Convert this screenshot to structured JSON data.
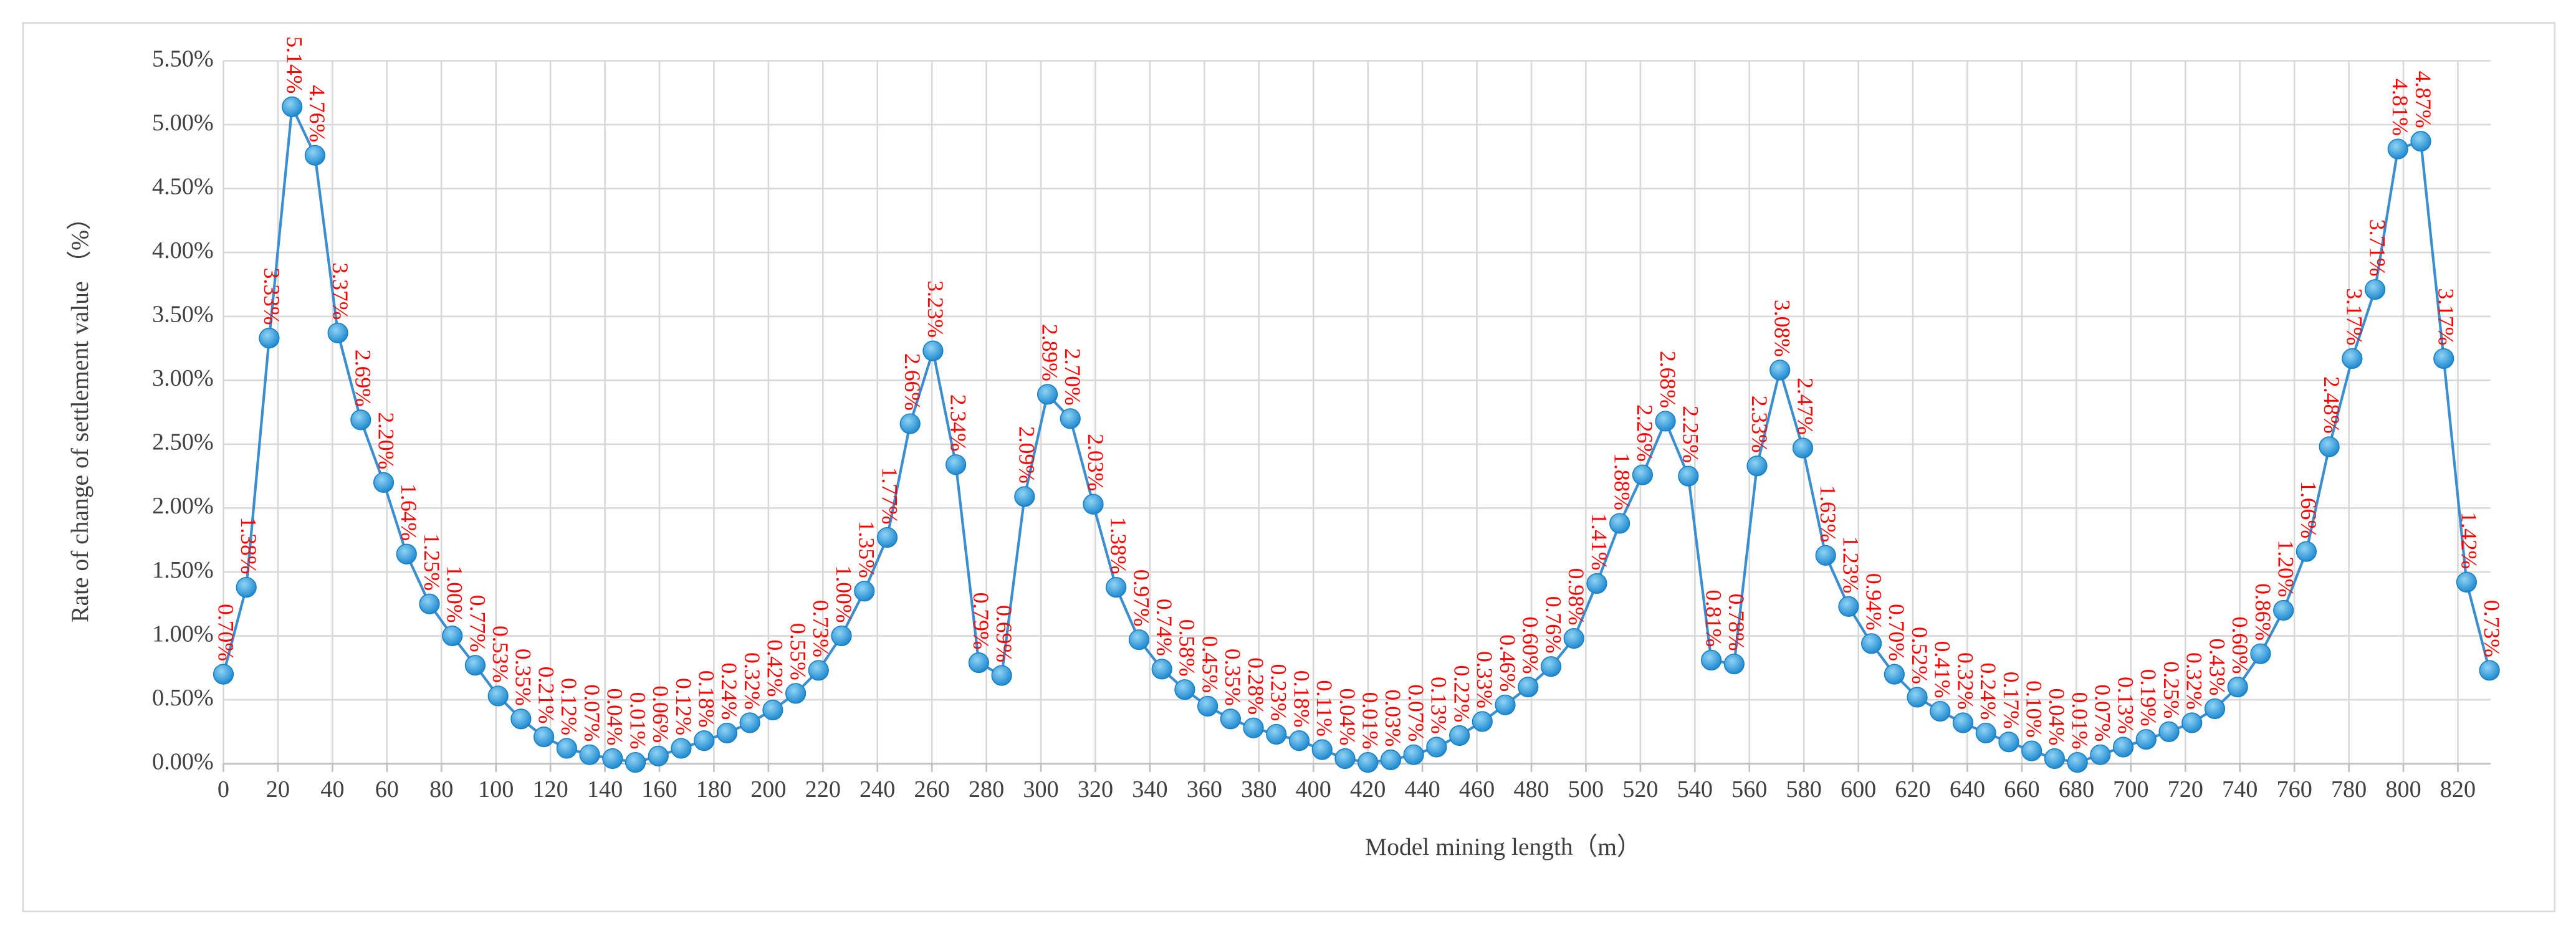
{
  "chart_data": {
    "type": "line",
    "xlabel": "Model mining length（m）",
    "ylabel": "Rate of change of settlement value （%）",
    "x": [
      0,
      8.4,
      16.8,
      25.2,
      33.6,
      42,
      50.4,
      58.8,
      67.2,
      75.6,
      84,
      92.4,
      100.8,
      109.2,
      117.6,
      126,
      134.4,
      142.8,
      151.2,
      159.6,
      168,
      176.4,
      184.8,
      193.2,
      201.6,
      210,
      218.4,
      226.8,
      235.2,
      243.6,
      252,
      260.4,
      268.8,
      277.2,
      285.6,
      294,
      302.4,
      310.8,
      319.2,
      327.6,
      336,
      344.4,
      352.8,
      361.2,
      369.6,
      378,
      386.4,
      394.8,
      403.2,
      411.6,
      420,
      428.4,
      436.8,
      445.2,
      453.6,
      462,
      470.4,
      478.8,
      487.2,
      495.6,
      504,
      512.4,
      520.8,
      529.2,
      537.6,
      546,
      554.4,
      562.8,
      571.2,
      579.6,
      588,
      596.4,
      604.8,
      613.2,
      621.6,
      630,
      638.4,
      646.8,
      655.2,
      663.6,
      672,
      680.4,
      688.8,
      697.2,
      705.6,
      714,
      722.4,
      730.8,
      739.2,
      747.6,
      756,
      764.4,
      772.8,
      781.2,
      789.6,
      798,
      806.4,
      814.8,
      823.2,
      831.6
    ],
    "series": [
      {
        "color": "#3b8fd0",
        "values": [
          0.7,
          1.38,
          3.33,
          5.14,
          4.76,
          3.37,
          2.69,
          2.2,
          1.64,
          1.25,
          1.0,
          0.77,
          0.53,
          0.35,
          0.21,
          0.12,
          0.07,
          0.04,
          0.01,
          0.06,
          0.12,
          0.18,
          0.24,
          0.32,
          0.42,
          0.55,
          0.73,
          1.0,
          1.35,
          1.77,
          2.66,
          3.23,
          2.34,
          0.79,
          0.69,
          2.09,
          2.89,
          2.7,
          2.03,
          1.38,
          0.97,
          0.74,
          0.58,
          0.45,
          0.35,
          0.28,
          0.23,
          0.18,
          0.11,
          0.04,
          0.01,
          0.03,
          0.07,
          0.13,
          0.22,
          0.33,
          0.46,
          0.6,
          0.76,
          0.98,
          1.41,
          1.88,
          2.26,
          2.68,
          2.25,
          0.81,
          0.78,
          2.33,
          3.08,
          2.47,
          1.63,
          1.23,
          0.94,
          0.7,
          0.52,
          0.41,
          0.32,
          0.24,
          0.17,
          0.1,
          0.04,
          0.01,
          0.07,
          0.13,
          0.19,
          0.25,
          0.32,
          0.43,
          0.6,
          0.86,
          1.2,
          1.66,
          2.48,
          3.17,
          3.71,
          4.81,
          4.87,
          3.17,
          1.42,
          0.73
        ],
        "value_labels": [
          "0.70%",
          "1.38%",
          "3.33%",
          "5.14%",
          "4.76%",
          "3.37%",
          "2.69%",
          "2.20%",
          "1.64%",
          "1.25%",
          "1.00%",
          "0.77%",
          "0.53%",
          "0.35%",
          "0.21%",
          "0.12%",
          "0.07%",
          "0.04%",
          "0.01%",
          "0.06%",
          "0.12%",
          "0.18%",
          "0.24%",
          "0.32%",
          "0.42%",
          "0.55%",
          "0.73%",
          "1.00%",
          "1.35%",
          "1.77%",
          "2.66%",
          "3.23%",
          "2.34%",
          "0.79%",
          "0.69%",
          "2.09%",
          "2.89%",
          "2.70%",
          "2.03%",
          "1.38%",
          "0.97%",
          "0.74%",
          "0.58%",
          "0.45%",
          "0.35%",
          "0.28%",
          "0.23%",
          "0.18%",
          "0.11%",
          "0.04%",
          "0.01%",
          "0.03%",
          "0.07%",
          "0.13%",
          "0.22%",
          "0.33%",
          "0.46%",
          "0.60%",
          "0.76%",
          "0.98%",
          "1.41%",
          "1.88%",
          "2.26%",
          "2.68%",
          "2.25%",
          "0.81%",
          "0.78%",
          "2.33%",
          "3.08%",
          "2.47%",
          "1.63%",
          "1.23%",
          "0.94%",
          "0.70%",
          "0.52%",
          "0.41%",
          "0.32%",
          "0.24%",
          "0.17%",
          "0.10%",
          "0.04%",
          "0.01%",
          "0.07%",
          "0.13%",
          "0.19%",
          "0.25%",
          "0.32%",
          "0.43%",
          "0.60%",
          "0.86%",
          "1.20%",
          "1.66%",
          "2.48%",
          "3.17%",
          "3.71%",
          "4.81%",
          "4.87%",
          "3.17%",
          "1.42%",
          "0.73%"
        ]
      }
    ],
    "xlim": [
      0,
      832
    ],
    "xticks": [
      0,
      20,
      40,
      60,
      80,
      100,
      120,
      140,
      160,
      180,
      200,
      220,
      240,
      260,
      280,
      300,
      320,
      340,
      360,
      380,
      400,
      420,
      440,
      460,
      480,
      500,
      520,
      540,
      560,
      580,
      600,
      620,
      640,
      660,
      680,
      700,
      720,
      740,
      760,
      780,
      800,
      820
    ],
    "ylim": [
      0,
      5.5
    ],
    "yticks": [
      {
        "value": 0,
        "label": "0.00%"
      },
      {
        "value": 0.5,
        "label": "0.50%"
      },
      {
        "value": 1,
        "label": "1.00%"
      },
      {
        "value": 1.5,
        "label": "1.50%"
      },
      {
        "value": 2,
        "label": "2.00%"
      },
      {
        "value": 2.5,
        "label": "2.50%"
      },
      {
        "value": 3,
        "label": "3.00%"
      },
      {
        "value": 3.5,
        "label": "3.50%"
      },
      {
        "value": 4,
        "label": "4.00%"
      },
      {
        "value": 4.5,
        "label": "4.50%"
      },
      {
        "value": 5,
        "label": "5.00%"
      },
      {
        "value": 5.5,
        "label": "5.50%"
      }
    ],
    "grid": true,
    "label_color": "#ff0000"
  }
}
